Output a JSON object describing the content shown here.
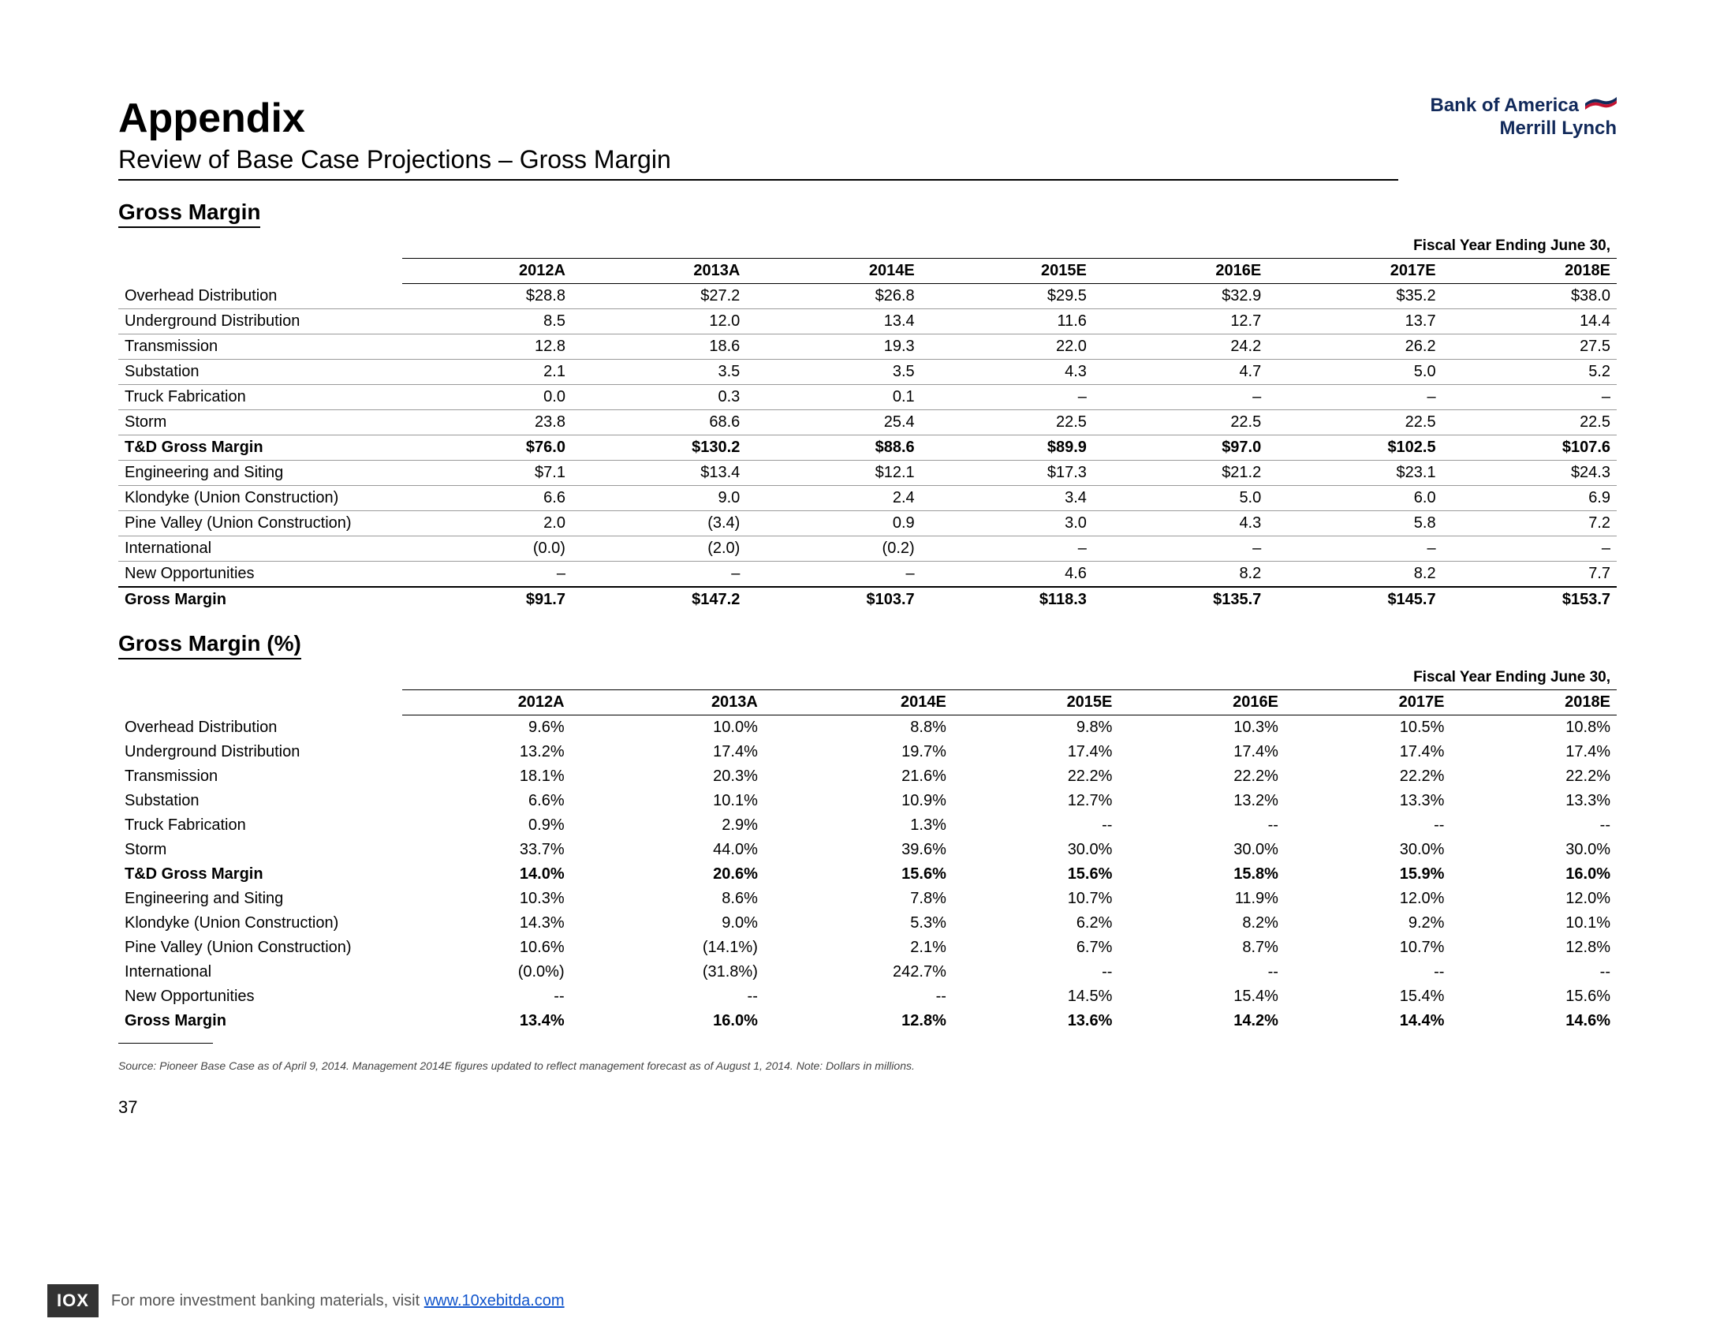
{
  "header": {
    "title": "Appendix",
    "subtitle": "Review of Base Case Projections – Gross Margin",
    "brand_line1": "Bank of America",
    "brand_line2": "Merrill Lynch"
  },
  "table1": {
    "section_title": "Gross Margin",
    "super_header": "Fiscal Year Ending June 30,",
    "columns": [
      "2012A",
      "2013A",
      "2014E",
      "2015E",
      "2016E",
      "2017E",
      "2018E"
    ],
    "rows": [
      {
        "label": "Overhead Distribution",
        "cells": [
          "$28.8",
          "$27.2",
          "$26.8",
          "$29.5",
          "$32.9",
          "$35.2",
          "$38.0"
        ],
        "type": "data"
      },
      {
        "label": "Underground Distribution",
        "cells": [
          "8.5",
          "12.0",
          "13.4",
          "11.6",
          "12.7",
          "13.7",
          "14.4"
        ],
        "type": "data"
      },
      {
        "label": "Transmission",
        "cells": [
          "12.8",
          "18.6",
          "19.3",
          "22.0",
          "24.2",
          "26.2",
          "27.5"
        ],
        "type": "data"
      },
      {
        "label": "Substation",
        "cells": [
          "2.1",
          "3.5",
          "3.5",
          "4.3",
          "4.7",
          "5.0",
          "5.2"
        ],
        "type": "data"
      },
      {
        "label": "Truck Fabrication",
        "cells": [
          "0.0",
          "0.3",
          "0.1",
          "–",
          "–",
          "–",
          "–"
        ],
        "type": "data"
      },
      {
        "label": "Storm",
        "cells": [
          "23.8",
          "68.6",
          "25.4",
          "22.5",
          "22.5",
          "22.5",
          "22.5"
        ],
        "type": "data"
      },
      {
        "label": "T&D Gross Margin",
        "cells": [
          "$76.0",
          "$130.2",
          "$88.6",
          "$89.9",
          "$97.0",
          "$102.5",
          "$107.6"
        ],
        "type": "subtotal"
      },
      {
        "label": "Engineering and Siting",
        "cells": [
          "$7.1",
          "$13.4",
          "$12.1",
          "$17.3",
          "$21.2",
          "$23.1",
          "$24.3"
        ],
        "type": "data"
      },
      {
        "label": "Klondyke (Union Construction)",
        "cells": [
          "6.6",
          "9.0",
          "2.4",
          "3.4",
          "5.0",
          "6.0",
          "6.9"
        ],
        "type": "data"
      },
      {
        "label": "Pine Valley (Union Construction)",
        "cells": [
          "2.0",
          "(3.4)",
          "0.9",
          "3.0",
          "4.3",
          "5.8",
          "7.2"
        ],
        "type": "data"
      },
      {
        "label": "International",
        "cells": [
          "(0.0)",
          "(2.0)",
          "(0.2)",
          "–",
          "–",
          "–",
          "–"
        ],
        "type": "data"
      },
      {
        "label": "New Opportunities",
        "cells": [
          "–",
          "–",
          "–",
          "4.6",
          "8.2",
          "8.2",
          "7.7"
        ],
        "type": "data"
      },
      {
        "label": "Gross Margin",
        "cells": [
          "$91.7",
          "$147.2",
          "$103.7",
          "$118.3",
          "$135.7",
          "$145.7",
          "$153.7"
        ],
        "type": "total"
      }
    ]
  },
  "table2": {
    "section_title": "Gross Margin (%)",
    "super_header": "Fiscal Year Ending June 30,",
    "columns": [
      "2012A",
      "2013A",
      "2014E",
      "2015E",
      "2016E",
      "2017E",
      "2018E"
    ],
    "rows": [
      {
        "label": "Overhead Distribution",
        "cells": [
          "9.6%",
          "10.0%",
          "8.8%",
          "9.8%",
          "10.3%",
          "10.5%",
          "10.8%"
        ],
        "type": "data"
      },
      {
        "label": "Underground Distribution",
        "cells": [
          "13.2%",
          "17.4%",
          "19.7%",
          "17.4%",
          "17.4%",
          "17.4%",
          "17.4%"
        ],
        "type": "data"
      },
      {
        "label": "Transmission",
        "cells": [
          "18.1%",
          "20.3%",
          "21.6%",
          "22.2%",
          "22.2%",
          "22.2%",
          "22.2%"
        ],
        "type": "data"
      },
      {
        "label": "Substation",
        "cells": [
          "6.6%",
          "10.1%",
          "10.9%",
          "12.7%",
          "13.2%",
          "13.3%",
          "13.3%"
        ],
        "type": "data"
      },
      {
        "label": "Truck Fabrication",
        "cells": [
          "0.9%",
          "2.9%",
          "1.3%",
          "--",
          "--",
          "--",
          "--"
        ],
        "type": "data"
      },
      {
        "label": "Storm",
        "cells": [
          "33.7%",
          "44.0%",
          "39.6%",
          "30.0%",
          "30.0%",
          "30.0%",
          "30.0%"
        ],
        "type": "data"
      },
      {
        "label": "T&D Gross Margin",
        "cells": [
          "14.0%",
          "20.6%",
          "15.6%",
          "15.6%",
          "15.8%",
          "15.9%",
          "16.0%"
        ],
        "type": "subtotal"
      },
      {
        "label": "Engineering and Siting",
        "cells": [
          "10.3%",
          "8.6%",
          "7.8%",
          "10.7%",
          "11.9%",
          "12.0%",
          "12.0%"
        ],
        "type": "data"
      },
      {
        "label": "Klondyke (Union Construction)",
        "cells": [
          "14.3%",
          "9.0%",
          "5.3%",
          "6.2%",
          "8.2%",
          "9.2%",
          "10.1%"
        ],
        "type": "data"
      },
      {
        "label": "Pine Valley (Union Construction)",
        "cells": [
          "10.6%",
          "(14.1%)",
          "2.1%",
          "6.7%",
          "8.7%",
          "10.7%",
          "12.8%"
        ],
        "type": "data"
      },
      {
        "label": "International",
        "cells": [
          "(0.0%)",
          "(31.8%)",
          "242.7%",
          "--",
          "--",
          "--",
          "--"
        ],
        "type": "data"
      },
      {
        "label": "New Opportunities",
        "cells": [
          "--",
          "--",
          "--",
          "14.5%",
          "15.4%",
          "15.4%",
          "15.6%"
        ],
        "type": "data"
      },
      {
        "label": "Gross Margin",
        "cells": [
          "13.4%",
          "16.0%",
          "12.8%",
          "13.6%",
          "14.2%",
          "14.4%",
          "14.6%"
        ],
        "type": "total"
      }
    ]
  },
  "source_note": "Source: Pioneer Base Case as of April 9, 2014.  Management 2014E figures updated to reflect management forecast as of August 1, 2014. Note: Dollars in millions.",
  "page_number": "37",
  "footer": {
    "logo": "IOX",
    "text": "For more investment banking materials, visit ",
    "link": "www.10xebitda.com"
  }
}
